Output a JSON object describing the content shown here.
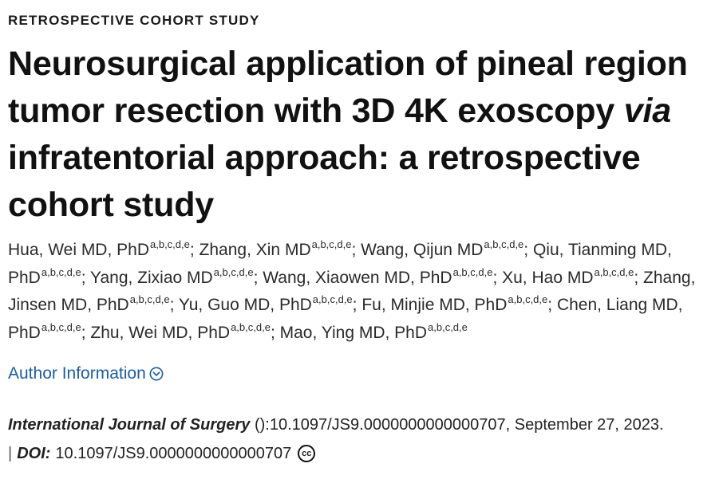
{
  "article": {
    "kicker": "RETROSPECTIVE COHORT STUDY",
    "title_part1": "Neurosurgical application of pineal region tumor resection with 3D 4K exoscopy ",
    "title_italic": "via",
    "title_part2": " infratentorial approach: a retrospective cohort study"
  },
  "authors": [
    {
      "name": "Hua, Wei MD, PhD",
      "aff": "a,b,c,d,e"
    },
    {
      "name": "Zhang, Xin MD",
      "aff": "a,b,c,d,e"
    },
    {
      "name": "Wang, Qijun MD",
      "aff": "a,b,c,d,e"
    },
    {
      "name": "Qiu, Tianming MD, PhD",
      "aff": "a,b,c,d,e"
    },
    {
      "name": "Yang, Zixiao MD",
      "aff": "a,b,c,d,e"
    },
    {
      "name": "Wang, Xiaowen MD, PhD",
      "aff": "a,b,c,d,e"
    },
    {
      "name": "Xu, Hao MD",
      "aff": "a,b,c,d,e"
    },
    {
      "name": "Zhang, Jinsen MD, PhD",
      "aff": "a,b,c,d,e"
    },
    {
      "name": "Yu, Guo MD, PhD",
      "aff": "a,b,c,d,e"
    },
    {
      "name": "Fu, Minjie MD, PhD",
      "aff": "a,b,c,d,e"
    },
    {
      "name": "Chen, Liang MD, PhD",
      "aff": "a,b,c,d,e"
    },
    {
      "name": "Zhu, Wei MD, PhD",
      "aff": "a,b,c,d,e"
    },
    {
      "name": "Mao, Ying MD, PhD",
      "aff": "a,b,c,d,e"
    }
  ],
  "author_info": {
    "label": "Author Information",
    "icon": "chevron-down-circle-icon"
  },
  "citation": {
    "journal": "International Journal of Surgery",
    "rest": " ():10.1097/JS9.0000000000000707, September 27, 2023.",
    "bar": "|",
    "doi_label": "DOI:",
    "doi_value": "10.1097/JS9.0000000000000707",
    "license_icon": "creative-commons-icon",
    "license_text": "cc"
  }
}
